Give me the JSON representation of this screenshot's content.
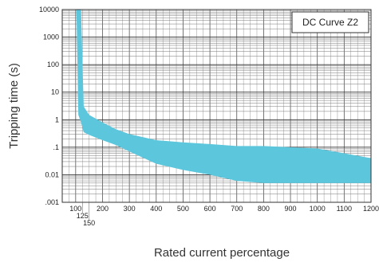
{
  "chart_data": {
    "type": "area",
    "title": "",
    "legend_label": "DC Curve Z2",
    "legend_position": "top-right",
    "xlabel": "Rated current percentage",
    "ylabel": "Tripping time (s)",
    "x_scale": "linear",
    "y_scale": "log",
    "xlim": [
      50,
      1200
    ],
    "ylim": [
      0.001,
      10000
    ],
    "grid": true,
    "x_ticks": [
      100,
      200,
      300,
      400,
      500,
      600,
      700,
      800,
      900,
      1000,
      1100,
      1200
    ],
    "x_tick_labels": [
      "100",
      "200",
      "300",
      "400",
      "500",
      "600",
      "700",
      "800",
      "900",
      "1000",
      "1100",
      "1200"
    ],
    "x_extra_ticks": [
      125,
      150
    ],
    "x_extra_tick_labels": [
      "125",
      "150"
    ],
    "y_ticks": [
      0.001,
      0.01,
      0.1,
      1,
      10,
      100,
      1000,
      10000
    ],
    "y_tick_labels": [
      ".001",
      "0.01",
      ".1",
      "1",
      "10",
      "100",
      "1000",
      "10000"
    ],
    "band_color": "#5cc6dc",
    "band": {
      "x": [
        103,
        110,
        120,
        130,
        150,
        200,
        250,
        300,
        400,
        500,
        600,
        700,
        800,
        900,
        1000,
        1100,
        1200
      ],
      "upper": [
        10000,
        10000,
        10000,
        3,
        1.5,
        0.8,
        0.45,
        0.3,
        0.18,
        0.15,
        0.13,
        0.11,
        0.11,
        0.1,
        0.09,
        0.06,
        0.04
      ],
      "lower": [
        10000,
        1.5,
        0.8,
        0.35,
        0.28,
        0.18,
        0.12,
        0.07,
        0.025,
        0.015,
        0.01,
        0.006,
        0.005,
        0.005,
        0.005,
        0.005,
        0.005
      ]
    }
  }
}
